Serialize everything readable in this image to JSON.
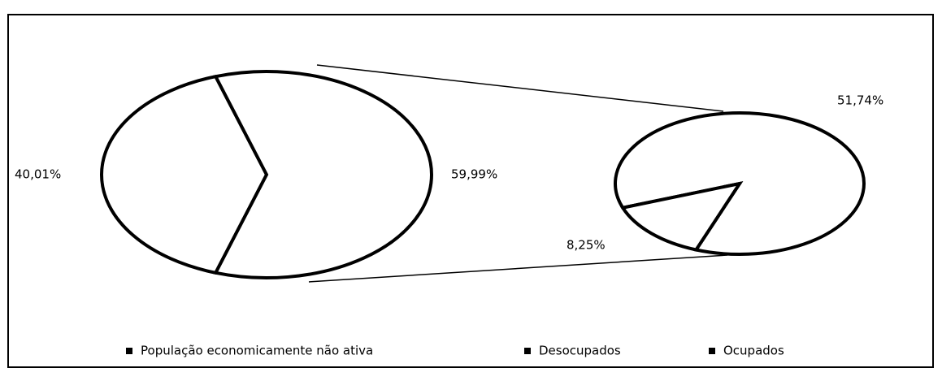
{
  "chart_data": {
    "type": "pie-of-pie",
    "categories": [
      "População economicamente não ativa",
      "Desocupados",
      "Ocupados"
    ],
    "values": [
      40.01,
      8.25,
      51.74
    ],
    "value_labels": [
      "40,01%",
      "8,25%",
      "51,74%"
    ],
    "other_value": 59.99,
    "other_label": "59,99%",
    "color": "#ffffff",
    "edge_color": "#000000",
    "legend": "bottom"
  }
}
